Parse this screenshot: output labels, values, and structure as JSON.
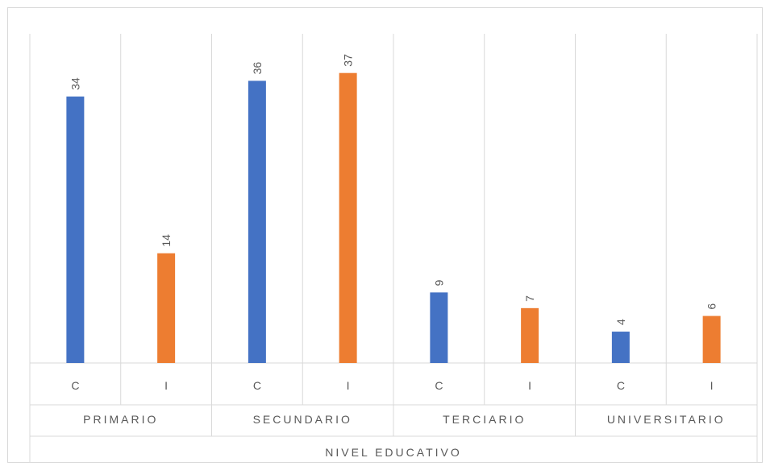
{
  "chart_data": {
    "type": "bar",
    "title": "",
    "xlabel": "NIVEL EDUCATIVO",
    "ylabel": "",
    "ylim": [
      0,
      42
    ],
    "grid": "vertical-separators",
    "groups": [
      {
        "name": "PRIMARIO",
        "categories": [
          "C",
          "I"
        ],
        "values": [
          34,
          14
        ],
        "colors": [
          "#4472C4",
          "#ED7D31"
        ]
      },
      {
        "name": "SECUNDARIO",
        "categories": [
          "C",
          "I"
        ],
        "values": [
          36,
          37
        ],
        "colors": [
          "#4472C4",
          "#ED7D31"
        ]
      },
      {
        "name": "TERCIARIO",
        "categories": [
          "C",
          "I"
        ],
        "values": [
          9,
          7
        ],
        "colors": [
          "#4472C4",
          "#ED7D31"
        ]
      },
      {
        "name": "UNIVERSITARIO",
        "categories": [
          "C",
          "I"
        ],
        "values": [
          4,
          6
        ],
        "colors": [
          "#4472C4",
          "#ED7D31"
        ]
      }
    ],
    "data_labels": true
  }
}
